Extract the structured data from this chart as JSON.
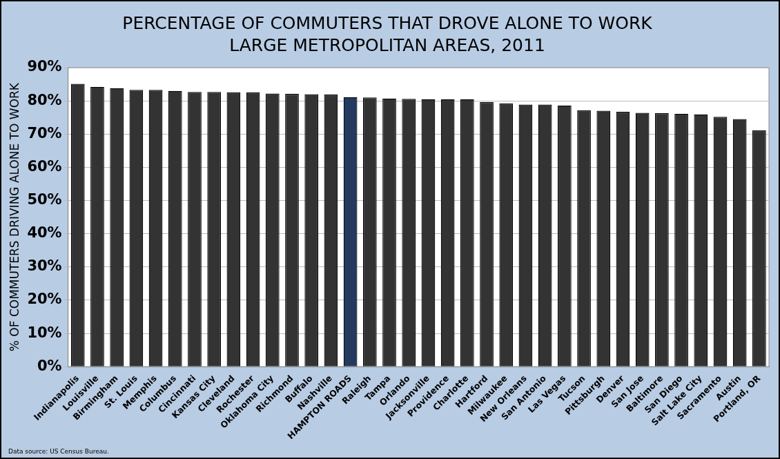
{
  "chart_data": {
    "type": "bar",
    "title": "PERCENTAGE OF COMMUTERS THAT DROVE ALONE TO WORK",
    "subtitle": "LARGE METROPOLITAN AREAS, 2011",
    "ylabel": "% OF COMMUTERS DRIVING ALONE TO WORK",
    "categories": [
      "Indianapolis",
      "Louisville",
      "Birmingham",
      "St. Louis",
      "Memphis",
      "Columbus",
      "Cincinnati",
      "Kansas City",
      "Cleveland",
      "Rochester",
      "Oklahoma City",
      "Richmond",
      "Buffalo",
      "Nashville",
      "HAMPTON ROADS",
      "Raleigh",
      "Tampa",
      "Orlando",
      "Jacksonville",
      "Providence",
      "Charlotte",
      "Hartford",
      "Milwaukee",
      "New Orleans",
      "San Antonio",
      "Las Vegas",
      "Tucson",
      "Pittsburgh",
      "Denver",
      "San Jose",
      "Baltimore",
      "San Diego",
      "Salt Lake City",
      "Sacramento",
      "Austin",
      "Portland, OR"
    ],
    "values": [
      85.1,
      84.2,
      83.8,
      83.3,
      83.3,
      83.0,
      82.7,
      82.7,
      82.5,
      82.5,
      82.2,
      82.1,
      82.0,
      81.9,
      81.1,
      81.0,
      80.7,
      80.6,
      80.5,
      80.5,
      80.5,
      79.6,
      79.2,
      78.9,
      78.9,
      78.6,
      77.1,
      77.0,
      76.7,
      76.4,
      76.3,
      76.1,
      75.9,
      75.2,
      74.5,
      71.1
    ],
    "colors": [
      "#333333",
      "#333333",
      "#333333",
      "#333333",
      "#333333",
      "#333333",
      "#333333",
      "#333333",
      "#333333",
      "#333333",
      "#333333",
      "#333333",
      "#333333",
      "#333333",
      "#243a5e",
      "#333333",
      "#333333",
      "#333333",
      "#333333",
      "#333333",
      "#333333",
      "#333333",
      "#333333",
      "#333333",
      "#333333",
      "#333333",
      "#333333",
      "#333333",
      "#333333",
      "#333333",
      "#333333",
      "#333333",
      "#333333",
      "#333333",
      "#333333",
      "#333333"
    ],
    "ylim": [
      0,
      90
    ],
    "yticks": [
      {
        "value": 0,
        "label": "0%"
      },
      {
        "value": 10,
        "label": "10%"
      },
      {
        "value": 20,
        "label": "20%"
      },
      {
        "value": 30,
        "label": "30%"
      },
      {
        "value": 40,
        "label": "40%"
      },
      {
        "value": 50,
        "label": "50%"
      },
      {
        "value": 60,
        "label": "60%"
      },
      {
        "value": 70,
        "label": "70%"
      },
      {
        "value": 80,
        "label": "80%"
      },
      {
        "value": 90,
        "label": "90%"
      }
    ],
    "grid": "y",
    "legend": false,
    "annotations": [
      "Data source:  US Census Bureau."
    ]
  }
}
